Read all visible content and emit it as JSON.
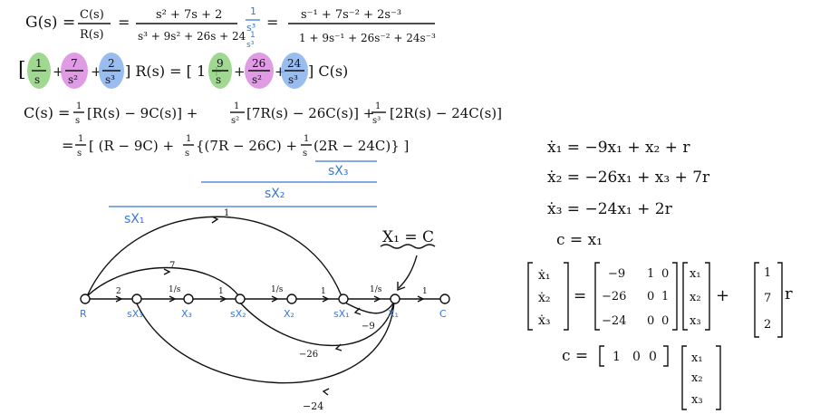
{
  "eq1": {
    "G": "G(s) =",
    "CR_num": "C(s)",
    "CR_den": "R(s)",
    "eq": "=",
    "tf_num": "s² + 7s + 2",
    "tf_den": "s³ + 9s² + 26s + 24",
    "mult_num": "1",
    "mult_den": "s³",
    "eq2": "=",
    "tf2_num": "s⁻¹ + 7s⁻² + 2s⁻³",
    "tf2_den": "1 + 9s⁻¹ + 26s⁻² + 24s⁻³"
  },
  "eq2": {
    "lb": "[",
    "t1n": "1",
    "t1d": "s",
    "p1": "+",
    "t2n": "7",
    "t2d": "s²",
    "p2": "+",
    "t3n": "2",
    "t3d": "s³",
    "rb_mid": "] R(s) = [ 1 +",
    "t4n": "9",
    "t4d": "s",
    "p4": "+",
    "t5n": "26",
    "t5d": "s²",
    "p5": "+",
    "t6n": "24",
    "t6d": "s³",
    "tail": "] C(s)",
    "colors": {
      "green": "#8fd17e",
      "purple": "#d98be0",
      "blue": "#8fb6ee"
    }
  },
  "eq3": {
    "lhs": "C(s) =",
    "f1": "[R(s) − 9C(s)] +",
    "f2": "[7R(s) − 26C(s)] +",
    "f3": "[2R(s) − 24C(s)]",
    "one": "1",
    "s": "s",
    "s2": "s²",
    "s3": "s³"
  },
  "eq4": {
    "lhs": "=",
    "a": "[ (R − 9C) +",
    "b": "{(7R − 26C) +",
    "c": "(2R − 24C)} ]",
    "one": "1",
    "s": "s"
  },
  "brackets": {
    "sx3": "sX₃",
    "sx2": "sX₂",
    "sx1": "sX₁"
  },
  "sfg": {
    "annotation": "X₁ = C",
    "nodes": [
      "R",
      "sX₃",
      "X₃",
      "sX₂",
      "X₂",
      "sX₁",
      "X₁",
      "C"
    ],
    "branch_gains": [
      "2",
      "1/s",
      "1",
      "1/s",
      "1",
      "1/s",
      "1"
    ],
    "forward_gains": [
      "1",
      "7"
    ],
    "feedback_gains": [
      "−9",
      "−26",
      "−24"
    ]
  },
  "state": {
    "e1": "ẋ₁ = −9x₁ + x₂ + r",
    "e2": "ẋ₂ = −26x₁ + x₃ + 7r",
    "e3": "ẋ₃ = −24x₁ + 2r",
    "e4": "c = x₁"
  },
  "matrix": {
    "xdot": [
      "ẋ₁",
      "ẋ₂",
      "ẋ₃"
    ],
    "eq": "=",
    "A": [
      [
        "−9",
        "1",
        "0"
      ],
      [
        "−26",
        "0",
        "1"
      ],
      [
        "−24",
        "0",
        "0"
      ]
    ],
    "x": [
      "x₁",
      "x₂",
      "x₃"
    ],
    "plus": "+",
    "B": [
      "1",
      "7",
      "2"
    ],
    "r": "r",
    "c_lhs": "c =",
    "C": [
      "1",
      "0",
      "0"
    ],
    "cx": [
      "x₁",
      "x₂",
      "x₃"
    ]
  }
}
